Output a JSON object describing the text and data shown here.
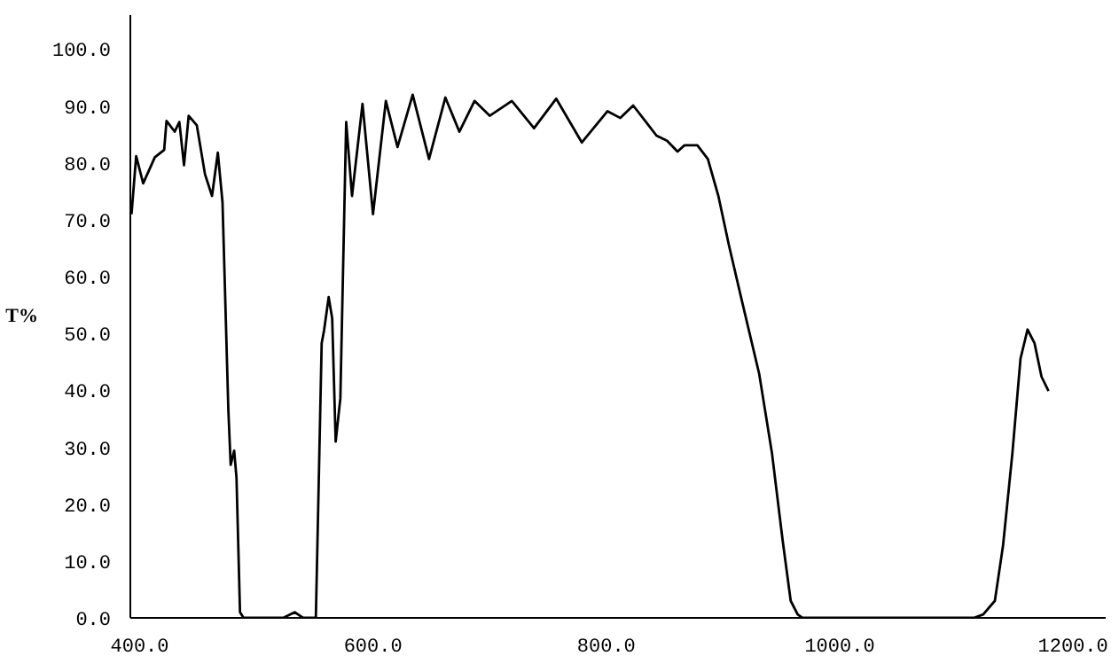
{
  "chart_data": {
    "type": "line",
    "ylabel": "T%",
    "x": [
      393,
      397,
      403,
      413,
      421,
      423,
      430,
      434,
      438,
      442,
      449,
      456,
      462,
      467,
      471,
      476,
      478,
      481,
      483,
      486,
      489,
      523,
      533,
      540,
      551,
      553,
      556,
      558,
      562,
      565,
      568,
      572,
      577,
      582,
      591,
      600,
      611,
      621,
      634,
      648,
      662,
      674,
      687,
      700,
      719,
      738,
      757,
      779,
      801,
      812,
      823,
      834,
      843,
      852,
      861,
      867,
      878,
      887,
      896,
      905,
      916,
      931,
      942,
      951,
      958,
      964,
      968,
      1115,
      1123,
      1133,
      1140,
      1148,
      1155,
      1161,
      1167,
      1173,
      1179
    ],
    "series": [
      {
        "color": "#000000",
        "values": [
          71,
          81.2,
          76.4,
          81,
          82.3,
          87.4,
          85.5,
          87.2,
          79.6,
          88.3,
          86.6,
          78,
          74.2,
          81.8,
          73.1,
          36.6,
          26.9,
          29.4,
          24.6,
          1,
          0,
          0,
          1,
          0,
          0,
          19.2,
          48.3,
          50.5,
          56.4,
          52.7,
          31,
          38.6,
          87.2,
          74.2,
          90.4,
          71,
          90.9,
          82.8,
          92,
          80.7,
          91.5,
          85.5,
          90.9,
          88.3,
          90.9,
          86.1,
          91.3,
          83.6,
          89.1,
          87.9,
          90.1,
          87.2,
          84.8,
          83.9,
          82,
          83.1,
          83.1,
          80.7,
          74.2,
          65.6,
          55.9,
          42.9,
          28.9,
          13.8,
          3,
          0.6,
          0,
          0,
          0.6,
          3,
          12.7,
          28.9,
          45.6,
          50.7,
          48.3,
          42.4,
          39.9
        ]
      }
    ],
    "xlim": [
      392,
      1228
    ],
    "ylim": [
      0,
      106
    ],
    "xticks": [
      {
        "value": 400,
        "label": "400.0"
      },
      {
        "value": 600,
        "label": "600.0"
      },
      {
        "value": 800,
        "label": "800.0"
      },
      {
        "value": 1000,
        "label": "1000.0"
      },
      {
        "value": 1200,
        "label": "1200.0"
      }
    ],
    "yticks": [
      {
        "value": 0,
        "label": "0.0"
      },
      {
        "value": 10,
        "label": "10.0"
      },
      {
        "value": 20,
        "label": "20.0"
      },
      {
        "value": 30,
        "label": "30.0"
      },
      {
        "value": 40,
        "label": "40.0"
      },
      {
        "value": 50,
        "label": "50.0"
      },
      {
        "value": 60,
        "label": "60.0"
      },
      {
        "value": 70,
        "label": "70.0"
      },
      {
        "value": 80,
        "label": "80.0"
      },
      {
        "value": 90,
        "label": "90.0"
      },
      {
        "value": 100,
        "label": "100.0"
      }
    ],
    "grid": false,
    "line_style": "solid"
  }
}
